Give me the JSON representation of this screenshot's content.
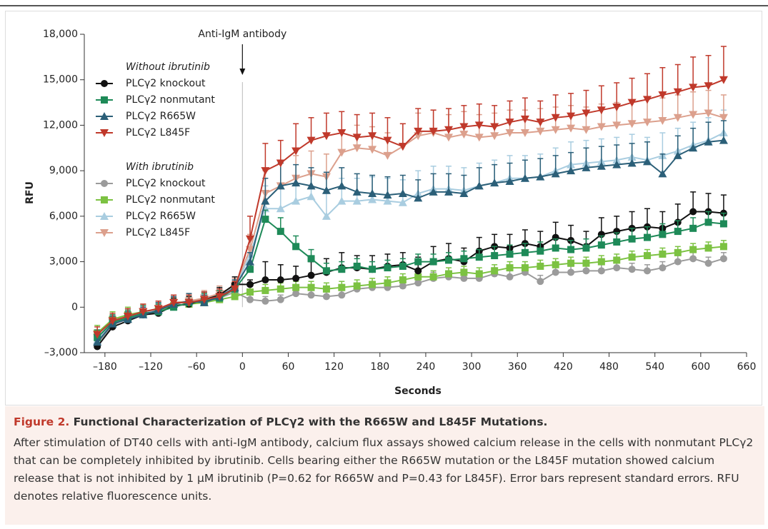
{
  "chart_data": {
    "type": "line",
    "annotation": "Anti-IgM antibody",
    "annotation_x": 0,
    "xlabel": "Seconds",
    "ylabel": "RFU",
    "legend_titles": [
      "Without ibrutinib",
      "With ibrutinib"
    ],
    "xlim": [
      -207,
      660
    ],
    "ylim": [
      -3000,
      18000
    ],
    "xticks": [
      {
        "value": -180,
        "label": "–180"
      },
      {
        "value": -120,
        "label": "–120"
      },
      {
        "value": -60,
        "label": "–60"
      },
      0,
      60,
      120,
      180,
      240,
      300,
      360,
      420,
      480,
      540,
      600,
      660
    ],
    "yticks": [
      {
        "value": -3000,
        "label": "–3,000"
      },
      0,
      {
        "value": 3000,
        "label": "3,000"
      },
      {
        "value": 6000,
        "label": "6,000"
      },
      {
        "value": 9000,
        "label": "9,000"
      },
      {
        "value": 12000,
        "label": "12,000"
      },
      {
        "value": 15000,
        "label": "15,000"
      },
      {
        "value": 18000,
        "label": "18,000"
      }
    ],
    "x": [
      -190,
      -170,
      -150,
      -130,
      -110,
      -90,
      -70,
      -50,
      -30,
      -10,
      10,
      30,
      50,
      70,
      90,
      110,
      130,
      150,
      170,
      190,
      210,
      230,
      250,
      270,
      290,
      310,
      330,
      350,
      370,
      390,
      410,
      430,
      450,
      470,
      490,
      510,
      530,
      550,
      570,
      590,
      610,
      630
    ],
    "series": [
      {
        "name": "PLCγ2 knockout",
        "color": "#111111",
        "marker": "circle",
        "values": [
          -2600,
          -1300,
          -900,
          -500,
          -400,
          100,
          200,
          500,
          800,
          1500,
          1500,
          1800,
          1800,
          1900,
          2100,
          2300,
          2600,
          2600,
          2500,
          2700,
          2800,
          2400,
          3000,
          3200,
          3000,
          3700,
          4000,
          3900,
          4200,
          4000,
          4600,
          4400,
          4000,
          4800,
          5000,
          5200,
          5300,
          5200,
          5600,
          6300,
          6300,
          6200
        ],
        "errors": [
          400,
          500,
          400,
          400,
          400,
          500,
          500,
          500,
          500,
          500,
          300,
          1200,
          1000,
          800,
          900,
          900,
          1000,
          800,
          900,
          800,
          800,
          900,
          1000,
          1000,
          900,
          900,
          800,
          900,
          900,
          1000,
          1000,
          1000,
          1000,
          1100,
          1000,
          1100,
          1200,
          1100,
          1200,
          1300,
          1200,
          1200
        ]
      },
      {
        "name": "PLCγ2 nonmutant",
        "color": "#1e8a58",
        "marker": "square",
        "values": [
          -2000,
          -1000,
          -700,
          -400,
          -300,
          0,
          300,
          400,
          600,
          1200,
          2500,
          5800,
          5000,
          4000,
          3200,
          2400,
          2500,
          2700,
          2500,
          2600,
          2700,
          3000,
          3000,
          3100,
          3200,
          3300,
          3400,
          3500,
          3600,
          3700,
          3900,
          3800,
          3900,
          4100,
          4300,
          4500,
          4600,
          4800,
          5000,
          5200,
          5600,
          5500
        ],
        "errors": [
          500,
          500,
          500,
          500,
          500,
          500,
          500,
          500,
          500,
          500,
          400,
          600,
          900,
          700,
          600,
          500,
          500,
          500,
          500,
          500,
          500,
          500,
          500,
          500,
          500,
          500,
          600,
          600,
          600,
          600,
          600,
          600,
          600,
          600,
          600,
          700,
          700,
          700,
          700,
          700,
          700,
          700
        ]
      },
      {
        "name": "PLCγ2 R665W",
        "color": "#2b5f78",
        "marker": "triangle-up",
        "values": [
          -2300,
          -1100,
          -800,
          -500,
          -200,
          200,
          400,
          300,
          700,
          1300,
          3000,
          7000,
          8000,
          8200,
          8000,
          7700,
          8000,
          7600,
          7500,
          7400,
          7500,
          7200,
          7600,
          7600,
          7500,
          8000,
          8200,
          8300,
          8500,
          8600,
          8800,
          9000,
          9200,
          9300,
          9400,
          9500,
          9600,
          8800,
          10000,
          10500,
          10900,
          11000
        ],
        "errors": [
          500,
          500,
          500,
          500,
          500,
          500,
          500,
          500,
          500,
          500,
          600,
          1500,
          1500,
          1200,
          1200,
          1200,
          1200,
          1200,
          1200,
          1200,
          1200,
          1200,
          1200,
          1200,
          1200,
          1200,
          1200,
          1200,
          1200,
          1200,
          1200,
          1200,
          1300,
          1300,
          1300,
          1300,
          1300,
          1300,
          1300,
          1300,
          1300,
          1300
        ]
      },
      {
        "name": "PLCγ2 L845F",
        "color": "#c0392b",
        "marker": "triangle-down",
        "values": [
          -1800,
          -900,
          -600,
          -300,
          -100,
          300,
          300,
          500,
          700,
          1200,
          4500,
          9000,
          9500,
          10300,
          11000,
          11300,
          11500,
          11200,
          11300,
          11000,
          10600,
          11600,
          11600,
          11700,
          11900,
          12000,
          11900,
          12200,
          12400,
          12200,
          12500,
          12600,
          12800,
          13000,
          13200,
          13500,
          13700,
          14000,
          14200,
          14500,
          14600,
          15000
        ],
        "errors": [
          500,
          500,
          500,
          500,
          500,
          500,
          500,
          500,
          500,
          500,
          1500,
          1800,
          1500,
          1800,
          1500,
          1500,
          1400,
          1500,
          1500,
          1500,
          1500,
          1500,
          1400,
          1400,
          1400,
          1400,
          1400,
          1400,
          1400,
          1400,
          1500,
          1500,
          1500,
          1600,
          1600,
          1600,
          1700,
          1800,
          1800,
          2000,
          2000,
          2200
        ]
      },
      {
        "name": "PLCγ2 knockout",
        "color": "#9b9b9b",
        "marker": "circle",
        "values": [
          -2400,
          -1200,
          -700,
          -500,
          -300,
          100,
          200,
          400,
          600,
          1000,
          500,
          400,
          500,
          900,
          800,
          700,
          800,
          1200,
          1300,
          1300,
          1400,
          1600,
          1900,
          2000,
          1900,
          1900,
          2200,
          2000,
          2300,
          1700,
          2300,
          2300,
          2400,
          2400,
          2600,
          2500,
          2400,
          2600,
          3000,
          3200,
          2900,
          3200
        ],
        "errors": [
          500,
          500,
          500,
          500,
          500,
          500,
          500,
          500,
          500,
          500,
          300,
          300,
          300,
          300,
          300,
          300,
          300,
          400,
          400,
          400,
          400,
          400,
          400,
          400,
          400,
          400,
          400,
          400,
          400,
          400,
          400,
          400,
          400,
          400,
          400,
          400,
          400,
          400,
          400,
          400,
          400,
          400
        ]
      },
      {
        "name": "PLCγ2 nonmutant",
        "color": "#7cc242",
        "marker": "square",
        "values": [
          -1700,
          -800,
          -500,
          -300,
          -200,
          100,
          200,
          300,
          500,
          700,
          1000,
          1100,
          1200,
          1300,
          1300,
          1200,
          1300,
          1400,
          1500,
          1600,
          1800,
          2000,
          2000,
          2200,
          2300,
          2200,
          2400,
          2600,
          2600,
          2700,
          2800,
          2900,
          2900,
          3000,
          3100,
          3300,
          3400,
          3500,
          3600,
          3800,
          3900,
          4000
        ],
        "errors": [
          500,
          500,
          500,
          500,
          500,
          500,
          500,
          500,
          500,
          500,
          400,
          400,
          400,
          400,
          400,
          400,
          400,
          400,
          400,
          400,
          400,
          400,
          400,
          400,
          400,
          400,
          400,
          400,
          400,
          400,
          400,
          400,
          400,
          400,
          400,
          400,
          400,
          400,
          400,
          400,
          400,
          400
        ]
      },
      {
        "name": "PLCγ2 R665W",
        "color": "#a9cde0",
        "marker": "triangle-up",
        "values": [
          -2200,
          -1000,
          -700,
          -400,
          -200,
          200,
          400,
          500,
          800,
          1200,
          3500,
          6500,
          6500,
          7000,
          7300,
          6000,
          7000,
          7000,
          7100,
          7000,
          6900,
          7500,
          7800,
          7800,
          7700,
          8000,
          8200,
          8500,
          8500,
          8600,
          9000,
          9400,
          9500,
          9600,
          9700,
          9900,
          9700,
          10000,
          10300,
          10700,
          11000,
          11500
        ],
        "errors": [
          500,
          500,
          500,
          500,
          500,
          500,
          500,
          500,
          500,
          500,
          1000,
          1500,
          1500,
          1500,
          1500,
          1500,
          1500,
          1500,
          1500,
          1500,
          1500,
          1500,
          1500,
          1500,
          1500,
          1500,
          1500,
          1500,
          1500,
          1500,
          1500,
          1500,
          1500,
          1500,
          1500,
          1500,
          1500,
          1500,
          1500,
          1500,
          1500,
          1500
        ]
      },
      {
        "name": "PLCγ2 L845F",
        "color": "#dca08d",
        "marker": "triangle-down",
        "values": [
          -2000,
          -1000,
          -600,
          -300,
          -100,
          300,
          400,
          600,
          900,
          1400,
          3800,
          7500,
          8000,
          8500,
          8800,
          8600,
          10200,
          10500,
          10400,
          10000,
          10600,
          11300,
          11500,
          11200,
          11400,
          11200,
          11300,
          11500,
          11500,
          11600,
          11700,
          11800,
          11700,
          11900,
          12000,
          12100,
          12200,
          12300,
          12500,
          12700,
          12800,
          12500
        ],
        "errors": [
          500,
          500,
          500,
          500,
          500,
          500,
          500,
          500,
          500,
          500,
          1000,
          1500,
          1500,
          1500,
          1500,
          1500,
          1500,
          1500,
          1500,
          1500,
          1500,
          1500,
          1500,
          1500,
          1500,
          1500,
          1500,
          1500,
          1500,
          1500,
          1500,
          1500,
          1500,
          1500,
          1500,
          1500,
          1500,
          1500,
          1500,
          1500,
          1500,
          1500
        ]
      }
    ]
  },
  "caption": {
    "label": "Figure 2.",
    "title": "Functional Characterization of PLCγ2 with the R665W and L845F Mutations.",
    "text": "After stimulation of DT40 cells with anti-IgM antibody, calcium flux assays showed calcium release in the cells with nonmutant PLCγ2 that can be completely inhibited by ibrutinib. Cells bearing either the R665W mutation or the L845F mutation showed calcium release that is not inhibited by 1 μM ibrutinib (P=0.62 for R665W and P=0.43 for L845F). Error bars represent standard errors. RFU denotes relative fluorescence units."
  }
}
